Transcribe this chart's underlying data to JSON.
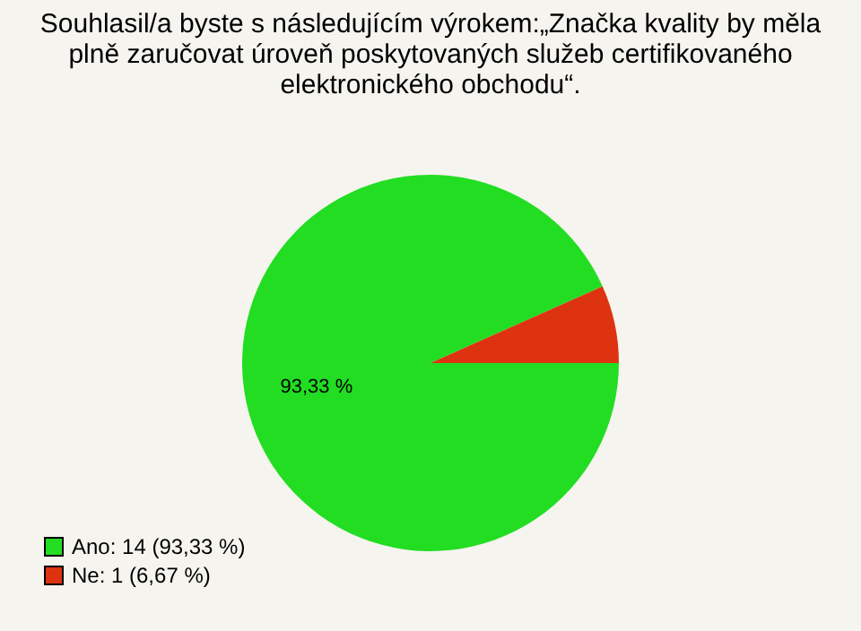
{
  "chart_data": {
    "type": "pie",
    "title": [
      "Souhlasil/a byste s následujícím výrokem:„Značka kvality by měla",
      "plně zaručovat úroveň poskytovaných služeb certifikovaného",
      "elektronického obchodu“."
    ],
    "categories": [
      "Ano: 14 (93,33 %)",
      "Ne: 1 (6,67 %)"
    ],
    "values": [
      93.33,
      6.67
    ],
    "colors": [
      "#22dd22",
      "#dd3311"
    ],
    "value_labels": [
      "93,33 %",
      null
    ],
    "legend": "bottom left"
  }
}
